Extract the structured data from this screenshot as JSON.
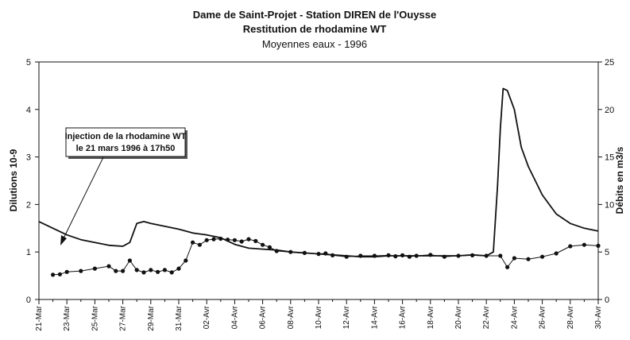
{
  "chart_data": {
    "type": "line",
    "title": [
      "Dame de Saint-Projet - Station DIREN de l'Ouysse",
      "Restitution de rhodamine WT"
    ],
    "subtitle": "Moyennes eaux  -  1996",
    "xlabel": "",
    "ylabel_left": "Dilutions 10-9",
    "ylabel_right": "Débits en m3/s",
    "ylim_left": [
      0,
      5
    ],
    "yticks_left": [
      0,
      1,
      2,
      3,
      4,
      5
    ],
    "ylim_right": [
      0,
      25
    ],
    "yticks_right": [
      0,
      5,
      10,
      15,
      20,
      25
    ],
    "xlim_days": [
      0,
      40
    ],
    "x_tick_labels": [
      "21-Mar",
      "23-Mar",
      "25-Mar",
      "27-Mar",
      "29-Mar",
      "31-Mar",
      "02-Avr",
      "04-Avr",
      "06-Avr",
      "08-Avr",
      "10-Avr",
      "12-Avr",
      "14-Avr",
      "16-Avr",
      "18-Avr",
      "20-Avr",
      "22-Avr",
      "24-Avr",
      "26-Avr",
      "28-Avr",
      "30-Avr"
    ],
    "grid": false,
    "series": [
      {
        "axis": "left",
        "style": "line-markers",
        "x": [
          1,
          1.5,
          2,
          3,
          4,
          5,
          5.5,
          6,
          6.5,
          7,
          7.5,
          8,
          8.5,
          9,
          9.5,
          10,
          10.5,
          11,
          11.5,
          12,
          12.5,
          13,
          13.5,
          14,
          14.5,
          15,
          15.5,
          16,
          16.5,
          17,
          18,
          19,
          20,
          20.5,
          21,
          22,
          23,
          24,
          25,
          25.5,
          26,
          26.5,
          27,
          28,
          29,
          30,
          31,
          32,
          33,
          33.5,
          34,
          35,
          36,
          37,
          38,
          39,
          40
        ],
        "values": [
          0.52,
          0.53,
          0.58,
          0.6,
          0.65,
          0.7,
          0.6,
          0.6,
          0.82,
          0.62,
          0.57,
          0.62,
          0.58,
          0.62,
          0.57,
          0.65,
          0.82,
          1.2,
          1.15,
          1.25,
          1.27,
          1.28,
          1.26,
          1.25,
          1.22,
          1.27,
          1.23,
          1.15,
          1.1,
          1.02,
          1.0,
          0.98,
          0.96,
          0.97,
          0.93,
          0.9,
          0.92,
          0.92,
          0.93,
          0.91,
          0.93,
          0.9,
          0.92,
          0.94,
          0.9,
          0.92,
          0.93,
          0.92,
          0.92,
          0.68,
          0.87,
          0.85,
          0.9,
          0.97,
          1.12,
          1.15,
          1.13
        ]
      },
      {
        "axis": "right",
        "style": "line",
        "x": [
          0,
          1,
          2,
          3,
          4,
          5,
          6,
          6.5,
          7,
          7.5,
          8,
          9,
          10,
          11,
          12,
          13,
          14,
          15,
          16,
          17,
          18,
          19,
          20,
          21,
          22,
          23,
          24,
          25,
          26,
          27,
          28,
          29,
          30,
          31,
          32,
          32.5,
          32.8,
          33,
          33.2,
          33.5,
          34,
          34.5,
          35,
          36,
          37,
          38,
          39,
          40
        ],
        "values": [
          8.2,
          7.5,
          6.8,
          6.3,
          6.0,
          5.7,
          5.6,
          6.0,
          8.0,
          8.2,
          8.0,
          7.7,
          7.4,
          7.0,
          6.8,
          6.5,
          5.8,
          5.4,
          5.3,
          5.2,
          5.0,
          4.9,
          4.8,
          4.7,
          4.6,
          4.5,
          4.5,
          4.6,
          4.6,
          4.6,
          4.6,
          4.6,
          4.6,
          4.7,
          4.6,
          5.0,
          12.0,
          18.0,
          22.2,
          22.0,
          20.0,
          16.0,
          14.0,
          11.0,
          9.0,
          8.0,
          7.5,
          7.2
        ]
      }
    ],
    "annotation": {
      "lines": [
        "Injection de la rhodamine WT",
        "le 21 mars 1996 à 17h50"
      ]
    }
  }
}
